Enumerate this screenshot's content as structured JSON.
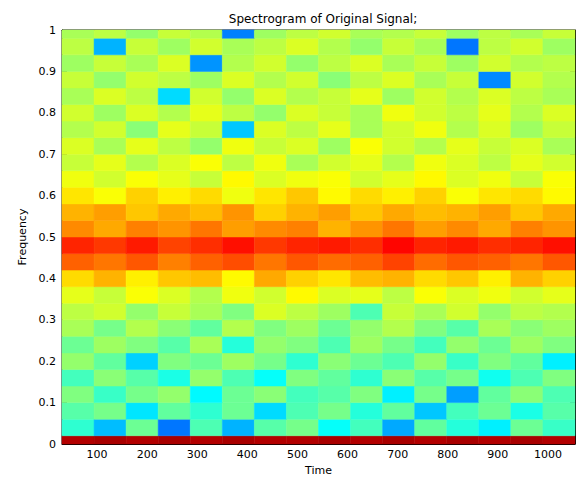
{
  "chart_data": {
    "type": "heatmap",
    "title": "Spectrogram of Original Signal;",
    "xlabel": "Time",
    "ylabel": "Frequency",
    "xlim": [
      30,
      1054
    ],
    "xticks": [
      100,
      200,
      300,
      400,
      500,
      600,
      700,
      800,
      900,
      1000
    ],
    "ylim": [
      0,
      1
    ],
    "yticks": [
      0,
      0.1,
      0.2,
      0.3,
      0.4,
      0.5,
      0.6,
      0.7,
      0.8,
      0.9,
      1
    ],
    "zlim": [
      0,
      10
    ],
    "cells": {
      "x": [
        62,
        126,
        190,
        254,
        318,
        382,
        446,
        510,
        574,
        638,
        702,
        766,
        830,
        894,
        958,
        1022
      ],
      "y": [
        0,
        0.04,
        0.08,
        0.12,
        0.16,
        0.2,
        0.24,
        0.28,
        0.32,
        0.36,
        0.4,
        0.44,
        0.48,
        0.52,
        0.56,
        0.6,
        0.64,
        0.68,
        0.72,
        0.76,
        0.8,
        0.84,
        0.88,
        0.92,
        0.96,
        1
      ],
      "z": [
        [
          9.5,
          9.6,
          9.5,
          9.6,
          9.5,
          9.6,
          9.5,
          9.5,
          9.6,
          9.5,
          9.6,
          9.5,
          9.6,
          9.5,
          9.6,
          9.5
        ],
        [
          4.2,
          3.1,
          4.8,
          2.4,
          4.5,
          3.0,
          4.6,
          4.9,
          3.8,
          4.4,
          2.9,
          4.7,
          4.1,
          3.6,
          4.8,
          4.3
        ],
        [
          4.6,
          4.9,
          3.5,
          4.7,
          4.2,
          4.8,
          3.4,
          4.5,
          4.9,
          4.1,
          4.7,
          3.2,
          4.4,
          4.8,
          4.0,
          4.6
        ],
        [
          5.0,
          4.3,
          4.9,
          5.2,
          3.7,
          4.8,
          5.1,
          4.4,
          4.6,
          5.0,
          3.6,
          4.9,
          2.8,
          4.7,
          5.1,
          4.5
        ],
        [
          4.4,
          5.1,
          4.6,
          4.0,
          5.2,
          4.5,
          3.8,
          5.0,
          4.7,
          4.2,
          5.1,
          4.6,
          4.9,
          3.9,
          4.5,
          5.0
        ],
        [
          5.2,
          4.7,
          3.3,
          5.0,
          4.8,
          5.3,
          4.9,
          4.2,
          5.1,
          4.8,
          4.5,
          5.2,
          4.3,
          5.0,
          4.7,
          3.6
        ],
        [
          4.8,
          5.3,
          5.0,
          4.6,
          5.4,
          4.1,
          5.2,
          5.0,
          4.5,
          5.3,
          4.9,
          4.4,
          5.2,
          4.8,
          5.3,
          5.0
        ],
        [
          5.4,
          4.9,
          5.5,
          5.1,
          4.7,
          5.5,
          5.0,
          5.3,
          4.8,
          5.2,
          5.5,
          5.0,
          4.6,
          5.4,
          5.1,
          5.3
        ],
        [
          5.6,
          5.8,
          5.2,
          5.7,
          5.4,
          5.0,
          5.9,
          5.6,
          5.3,
          4.5,
          5.7,
          5.4,
          5.8,
          5.2,
          5.6,
          5.5
        ],
        [
          6.0,
          5.7,
          6.2,
          5.9,
          5.5,
          6.1,
          5.8,
          6.3,
          5.9,
          6.0,
          5.6,
          6.2,
          5.9,
          6.1,
          5.8,
          6.0
        ],
        [
          6.6,
          7.0,
          6.4,
          6.8,
          6.9,
          6.3,
          7.1,
          6.7,
          6.5,
          6.9,
          7.0,
          6.6,
          6.8,
          6.4,
          7.0,
          6.7
        ],
        [
          7.8,
          7.6,
          7.9,
          7.5,
          7.8,
          8.0,
          7.6,
          7.9,
          7.7,
          7.8,
          8.1,
          7.7,
          7.9,
          7.8,
          7.6,
          7.9
        ],
        [
          8.4,
          8.2,
          8.5,
          8.1,
          8.3,
          8.6,
          8.2,
          8.4,
          8.5,
          8.3,
          8.7,
          8.4,
          8.5,
          8.3,
          8.4,
          8.6
        ],
        [
          7.4,
          7.1,
          7.5,
          7.3,
          7.6,
          7.2,
          7.4,
          7.5,
          7.0,
          7.3,
          7.6,
          7.2,
          7.4,
          7.1,
          7.5,
          7.3
        ],
        [
          7.0,
          7.2,
          6.8,
          7.1,
          6.9,
          7.3,
          6.7,
          7.0,
          7.2,
          6.8,
          7.1,
          6.9,
          7.0,
          7.2,
          6.8,
          7.1
        ],
        [
          6.5,
          6.2,
          6.7,
          6.4,
          6.6,
          6.1,
          6.5,
          6.8,
          6.3,
          6.6,
          6.4,
          6.7,
          6.2,
          6.5,
          6.6,
          6.3
        ],
        [
          6.1,
          5.8,
          6.2,
          6.0,
          5.7,
          6.3,
          5.9,
          6.1,
          6.2,
          5.8,
          6.0,
          6.3,
          5.9,
          6.1,
          5.7,
          6.2
        ],
        [
          5.7,
          6.0,
          5.5,
          5.9,
          6.2,
          5.6,
          6.1,
          5.4,
          5.8,
          6.0,
          5.5,
          6.1,
          5.9,
          5.6,
          6.0,
          5.8
        ],
        [
          5.9,
          5.4,
          6.0,
          5.6,
          5.2,
          6.1,
          5.7,
          5.9,
          5.3,
          6.2,
          5.8,
          5.5,
          6.0,
          5.7,
          5.9,
          5.4
        ],
        [
          5.5,
          5.8,
          5.1,
          6.0,
          5.7,
          3.2,
          5.9,
          5.6,
          6.0,
          5.4,
          5.8,
          6.1,
          5.5,
          5.9,
          5.3,
          5.7
        ],
        [
          5.8,
          5.3,
          5.9,
          5.5,
          6.0,
          5.6,
          5.2,
          5.9,
          5.7,
          5.4,
          6.1,
          5.8,
          5.6,
          6.0,
          5.5,
          5.9
        ],
        [
          5.4,
          5.9,
          5.6,
          3.4,
          5.8,
          5.2,
          5.9,
          5.5,
          5.7,
          6.0,
          5.3,
          5.8,
          5.5,
          5.9,
          5.6,
          5.4
        ],
        [
          5.7,
          5.2,
          5.8,
          5.6,
          5.3,
          5.9,
          5.5,
          5.8,
          5.1,
          5.6,
          5.9,
          5.4,
          5.7,
          2.6,
          5.8,
          5.5
        ],
        [
          5.3,
          5.7,
          5.4,
          5.9,
          2.7,
          5.5,
          5.8,
          5.2,
          5.6,
          5.9,
          5.4,
          5.7,
          5.3,
          5.8,
          5.5,
          5.6
        ],
        [
          5.6,
          3.0,
          5.7,
          5.3,
          5.8,
          5.4,
          5.6,
          5.9,
          5.5,
          5.2,
          5.7,
          5.4,
          2.4,
          5.6,
          5.8,
          5.3
        ],
        [
          5.4,
          5.6,
          5.2,
          5.7,
          5.5,
          2.5,
          5.3,
          5.6,
          5.8,
          5.4,
          5.5,
          5.7,
          5.3,
          5.6,
          5.4,
          5.7
        ]
      ]
    }
  }
}
